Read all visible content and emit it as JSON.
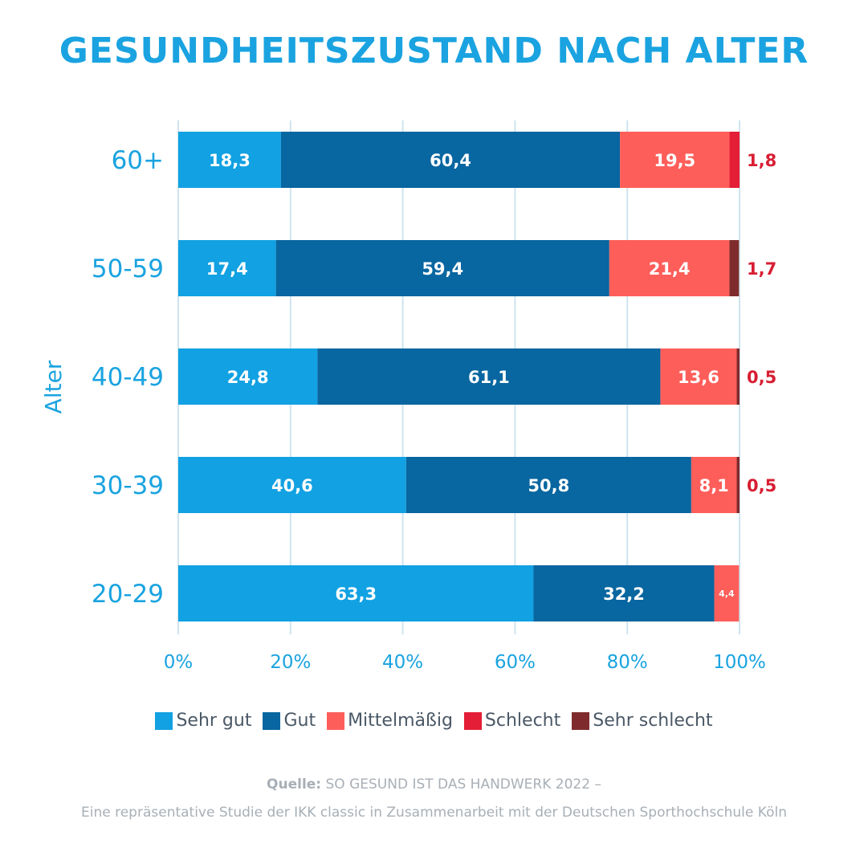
{
  "title": "GESUNDHEITSZUSTAND NACH ALTER",
  "chart_data": {
    "type": "bar",
    "orientation": "horizontal",
    "stacked": true,
    "categories": [
      "60+",
      "50-59",
      "40-49",
      "30-39",
      "20-29"
    ],
    "ylabel": "Alter",
    "xlabel": "",
    "xlim": [
      0,
      100
    ],
    "x_ticks": [
      "0%",
      "20%",
      "40%",
      "60%",
      "80%",
      "100%"
    ],
    "grid": true,
    "legend_position": "bottom",
    "series": [
      {
        "name": "Sehr gut",
        "color": "#12a1e2",
        "values": [
          18.3,
          17.4,
          24.8,
          40.6,
          63.3
        ],
        "labels": [
          "18,3",
          "17,4",
          "24,8",
          "40,6",
          "63,3"
        ]
      },
      {
        "name": "Gut",
        "color": "#0866a0",
        "values": [
          60.4,
          59.4,
          61.1,
          50.8,
          32.2
        ],
        "labels": [
          "60,4",
          "59,4",
          "61,1",
          "50,8",
          "32,2"
        ]
      },
      {
        "name": "Mittelmäßig",
        "color": "#fe5e5a",
        "values": [
          19.5,
          21.4,
          13.6,
          8.1,
          4.4
        ],
        "labels": [
          "19,5",
          "21,4",
          "13,6",
          "8,1",
          "4,4"
        ]
      },
      {
        "name": "Schlecht",
        "color": "#e41e36",
        "values": [
          1.8,
          0,
          0,
          0,
          0
        ],
        "labels": [
          "",
          "",
          "",
          "",
          ""
        ]
      },
      {
        "name": "Sehr schlecht",
        "color": "#7f2b2d",
        "values": [
          0,
          1.7,
          0.5,
          0.5,
          0
        ],
        "labels": [
          "",
          "",
          "",
          "",
          ""
        ]
      }
    ],
    "outside_labels": [
      "1,8",
      "1,7",
      "0,5",
      "0,5",
      ""
    ],
    "outside_label_color": "#d81e33"
  },
  "source": {
    "prefix": "Quelle:",
    "line1": " SO GESUND IST DAS HANDWERK 2022 –",
    "line2": "Eine repräsentative Studie der IKK classic in Zusammenarbeit mit der Deutschen Sporthochschule Köln"
  }
}
